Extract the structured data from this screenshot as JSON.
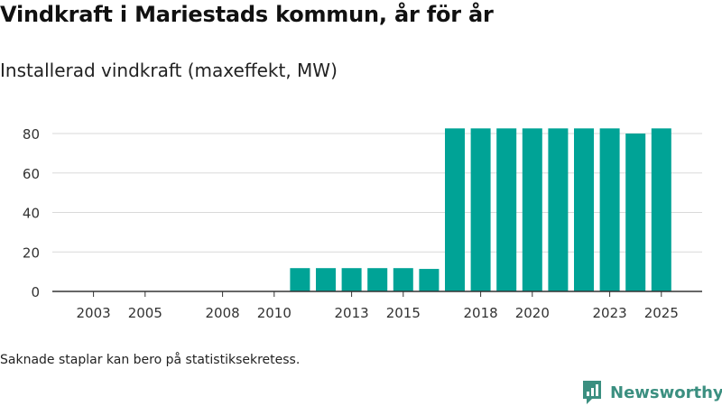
{
  "header": {
    "title": "Vindkraft i Mariestads kommun, år för år",
    "subtitle": "Installerad vindkraft (maxeffekt, MW)"
  },
  "footer": {
    "note": "Saknade staplar kan bero på statistiksekretess.",
    "brand": "Newsworthy"
  },
  "colors": {
    "bar": "#00a396",
    "grid": "#d9d9d9",
    "axis": "#333333",
    "brand": "#3b8f80"
  },
  "chart_data": {
    "type": "bar",
    "title": "Vindkraft i Mariestads kommun, år för år",
    "subtitle": "Installerad vindkraft (maxeffekt, MW)",
    "xlabel": "",
    "ylabel": "",
    "x_range": [
      2002,
      2026
    ],
    "ylim": [
      0,
      85
    ],
    "y_ticks": [
      0,
      20,
      40,
      60,
      80
    ],
    "x_tick_labels": [
      "2003",
      "2005",
      "2008",
      "2010",
      "2013",
      "2015",
      "2018",
      "2020",
      "2023",
      "2025"
    ],
    "grid": true,
    "categories": [
      "2011",
      "2012",
      "2013",
      "2014",
      "2015",
      "2016",
      "2017",
      "2018",
      "2019",
      "2020",
      "2021",
      "2022",
      "2023",
      "2024",
      "2025"
    ],
    "values": [
      11.8,
      11.8,
      11.8,
      11.8,
      11.8,
      11.4,
      82.6,
      82.6,
      82.6,
      82.6,
      82.6,
      82.6,
      82.6,
      80.0,
      82.6
    ]
  }
}
